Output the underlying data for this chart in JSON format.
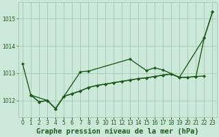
{
  "title": "Graphe pression niveau de la mer (hPa)",
  "background_color": "#cce8d8",
  "plot_bg_color": "#cce8d8",
  "grid_color": "#99c4aa",
  "line_color": "#1a5c1a",
  "ylim": [
    1011.4,
    1015.6
  ],
  "yticks": [
    1012,
    1013,
    1014,
    1015
  ],
  "hours": [
    0,
    1,
    2,
    3,
    4,
    5,
    6,
    7,
    8,
    9,
    10,
    11,
    12,
    13,
    14,
    15,
    16,
    17,
    18,
    19,
    20,
    21,
    22,
    23
  ],
  "line1_x": [
    0,
    1,
    3,
    4,
    7,
    8,
    13,
    15,
    16,
    17,
    19,
    22,
    23
  ],
  "line1_y": [
    1013.35,
    1012.2,
    1012.0,
    1011.7,
    1013.05,
    1013.08,
    1013.52,
    1013.1,
    1013.2,
    1013.12,
    1012.85,
    1014.3,
    1015.25
  ],
  "line2_x": [
    1,
    2,
    3,
    4,
    5,
    6,
    7,
    8,
    9,
    10,
    11,
    12,
    13,
    14,
    15,
    16,
    17,
    18,
    19,
    20,
    21,
    22
  ],
  "line2_y": [
    1012.2,
    1011.95,
    1012.0,
    1011.7,
    1012.15,
    1012.25,
    1012.35,
    1012.48,
    1012.55,
    1012.6,
    1012.65,
    1012.7,
    1012.75,
    1012.8,
    1012.83,
    1012.88,
    1012.93,
    1012.97,
    1012.85,
    1012.85,
    1012.88,
    1012.9
  ],
  "line3_x": [
    1,
    2,
    3,
    4,
    5,
    6,
    7,
    8,
    9,
    10,
    11,
    12,
    13,
    14,
    15,
    16,
    17,
    18,
    19,
    20,
    21,
    22,
    23
  ],
  "line3_y": [
    1012.2,
    1011.95,
    1012.0,
    1011.7,
    1012.15,
    1012.25,
    1012.35,
    1012.48,
    1012.55,
    1012.6,
    1012.65,
    1012.7,
    1012.75,
    1012.8,
    1012.83,
    1012.88,
    1012.93,
    1012.97,
    1012.85,
    1012.85,
    1012.88,
    1014.3,
    1015.25
  ],
  "marker_size": 2.2,
  "line_width": 1.0,
  "title_fontsize": 7.5,
  "tick_fontsize": 5.5
}
